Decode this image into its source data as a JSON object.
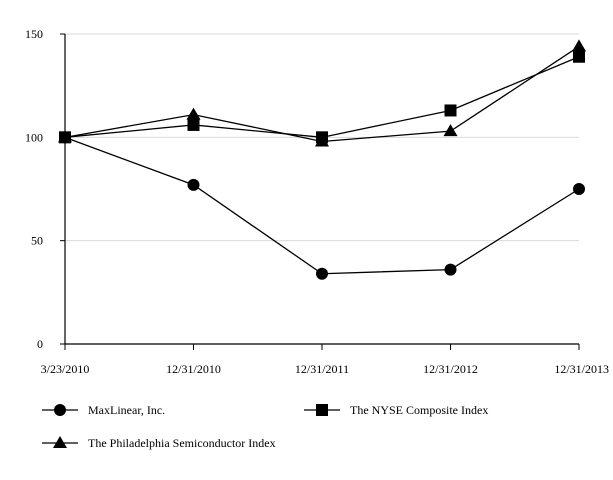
{
  "chart_data": {
    "type": "line",
    "title": "",
    "xlabel": "",
    "ylabel": "",
    "categories": [
      "3/23/2010",
      "12/31/2010",
      "12/31/2011",
      "12/31/2012",
      "12/31/2013"
    ],
    "ylim": [
      0,
      150
    ],
    "yticks": [
      0,
      50,
      100,
      150
    ],
    "grid": "horizontal",
    "legend_position": "bottom",
    "series": [
      {
        "name": "MaxLinear, Inc.",
        "marker": "circle",
        "color": "#000000",
        "values": [
          100,
          77,
          34,
          36,
          75
        ]
      },
      {
        "name": "The NYSE Composite Index",
        "marker": "square",
        "color": "#000000",
        "values": [
          100,
          106,
          100,
          113,
          139
        ]
      },
      {
        "name": "The Philadelphia Semiconductor Index",
        "marker": "triangle",
        "color": "#000000",
        "values": [
          100,
          111,
          98,
          103,
          144
        ]
      }
    ]
  }
}
